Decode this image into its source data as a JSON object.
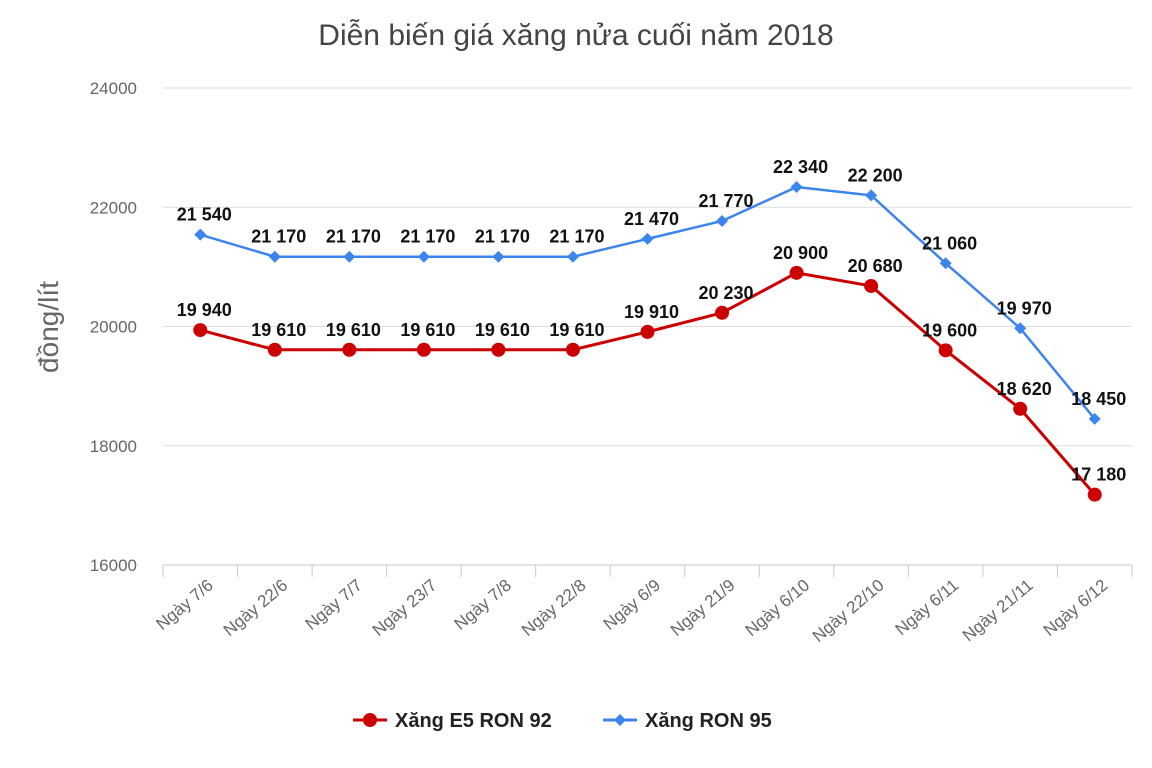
{
  "chart_data": {
    "type": "line",
    "title": "Diễn biến giá xăng nửa cuối năm 2018",
    "ylabel": "đồng/lít",
    "xlabel": "",
    "ylim": [
      16000,
      24000
    ],
    "yticks": [
      16000,
      18000,
      20000,
      22000,
      24000
    ],
    "ytick_labels": [
      "16000",
      "18000",
      "20000",
      "22000",
      "24000"
    ],
    "grid": true,
    "legend_position": "bottom",
    "categories": [
      "Ngày 7/6",
      "Ngày 22/6",
      "Ngày 7/7",
      "Ngày 23/7",
      "Ngày 7/8",
      "Ngày 22/8",
      "Ngày 6/9",
      "Ngày 21/9",
      "Ngày 6/10",
      "Ngày 22/10",
      "Ngày 6/11",
      "Ngày 21/11",
      "Ngày 6/12"
    ],
    "series": [
      {
        "name": "Xăng E5 RON 92",
        "color": "#cc0000",
        "marker": "circle",
        "values": [
          19940,
          19610,
          19610,
          19610,
          19610,
          19610,
          19910,
          20230,
          20900,
          20680,
          19600,
          18620,
          17180
        ],
        "labels": [
          "19 940",
          "19 610",
          "19 610",
          "19 610",
          "19 610",
          "19 610",
          "19 910",
          "20 230",
          "20 900",
          "20 680",
          "19 600",
          "18 620",
          "17 180"
        ]
      },
      {
        "name": "Xăng RON 95",
        "color": "#3d85ee",
        "marker": "diamond",
        "values": [
          21540,
          21170,
          21170,
          21170,
          21170,
          21170,
          21470,
          21770,
          22340,
          22200,
          21060,
          19970,
          18450
        ],
        "labels": [
          "21 540",
          "21 170",
          "21 170",
          "21 170",
          "21 170",
          "21 170",
          "21 470",
          "21 770",
          "22 340",
          "22 200",
          "21 060",
          "19 970",
          "18 450"
        ]
      }
    ]
  }
}
